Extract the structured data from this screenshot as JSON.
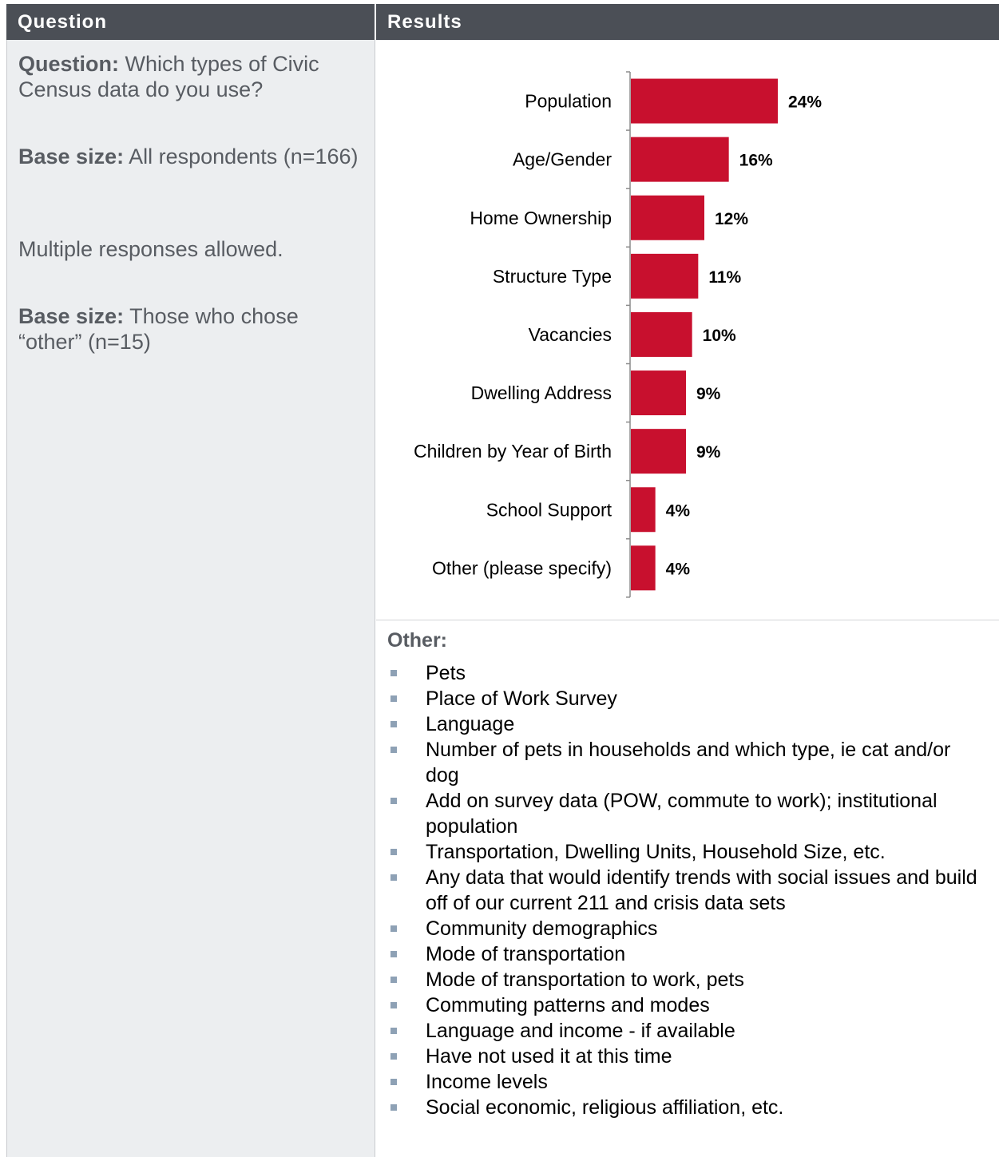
{
  "header": {
    "question_label": "Question",
    "results_label": "Results"
  },
  "left": {
    "question_prefix": "Question:",
    "question_text": "Which types of Civic Census data do you use?",
    "base_prefix": "Base size:",
    "base_text": "All respondents (n=166)",
    "note": "Multiple responses allowed.",
    "base2_prefix": "Base size:",
    "base2_text": "Those who chose “other” (n=15)"
  },
  "colors": {
    "bar": "#c8102e",
    "header_bg": "#4b4f56",
    "panel_bg": "#eceef0",
    "bullet": "#8ea1b5"
  },
  "chart_data": {
    "type": "bar",
    "orientation": "horizontal",
    "categories": [
      "Population",
      "Age/Gender",
      "Home Ownership",
      "Structure Type",
      "Vacancies",
      "Dwelling Address",
      "Children by Year of Birth",
      "School Support",
      "Other (please specify)"
    ],
    "values": [
      24,
      16,
      12,
      11,
      10,
      9,
      9,
      4,
      4
    ],
    "value_labels": [
      "24%",
      "16%",
      "12%",
      "11%",
      "10%",
      "9%",
      "9%",
      "4%",
      "4%"
    ],
    "unit": "%",
    "xlim": [
      0,
      24
    ]
  },
  "other": {
    "title": "Other:",
    "items": [
      "Pets",
      "Place of Work Survey",
      "Language",
      "Number of pets in households and which type, ie cat and/or dog",
      "Add on survey data (POW, commute to work); institutional population",
      "Transportation, Dwelling Units, Household Size, etc.",
      "Any data that would identify trends with social issues and build off of our current 211 and crisis data sets",
      "Community demographics",
      "Mode of transportation",
      "Mode of transportation to work, pets",
      "Commuting patterns and modes",
      "Language and income - if available",
      "Have not used it at this time",
      "Income levels",
      "Social economic, religious affiliation, etc."
    ]
  }
}
